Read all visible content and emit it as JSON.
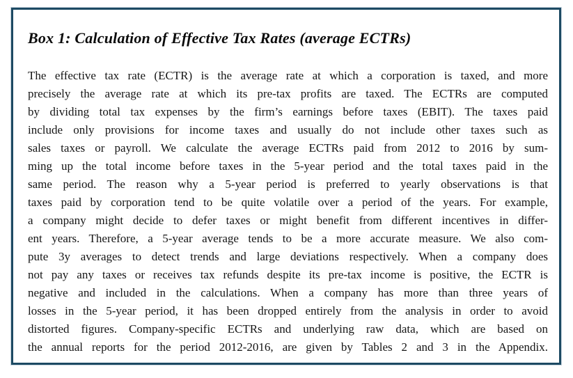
{
  "box": {
    "title": "Box 1: Calculation of Effective Tax Rates (average ECTRs)",
    "border_color": "#1d4a63",
    "text_color": "#151515",
    "body_lines": [
      "The effective tax rate (ECTR) is the average rate at which a corporation is taxed, and more",
      "precisely the average rate at which its pre-tax profits are taxed. The ECTRs are computed",
      "by dividing total tax expenses by the firm’s earnings before taxes (EBIT). The taxes paid",
      "include only provisions for income taxes and usually do not include other taxes such as",
      "sales taxes or payroll. We calculate the average ECTRs paid from 2012 to 2016 by sum-",
      "ming up the total income before taxes in the 5-year period and the total taxes paid in the",
      "same period. The reason why a 5-year period is preferred to yearly observations is that",
      "taxes paid by corporation tend to be quite volatile over a period of the years. For example,",
      "a company might decide to defer taxes or might benefit from different incentives in differ-",
      "ent years.  Therefore, a 5-year average tends to be a more accurate measure. We also com-",
      "pute 3y averages to detect trends and large deviations respectively. When a company does",
      "not pay any taxes or receives tax refunds despite its pre-tax income is positive, the ECTR is",
      "negative and included in the calculations. When a company has more than three years of",
      "losses in the 5-year period, it has been dropped entirely from the analysis in order to avoid",
      "distorted figures. Company-specific ECTRs and underlying raw data, which are based on",
      "the annual reports for the period 2012-2016, are given by Tables 2 and 3 in the Appendix."
    ]
  }
}
